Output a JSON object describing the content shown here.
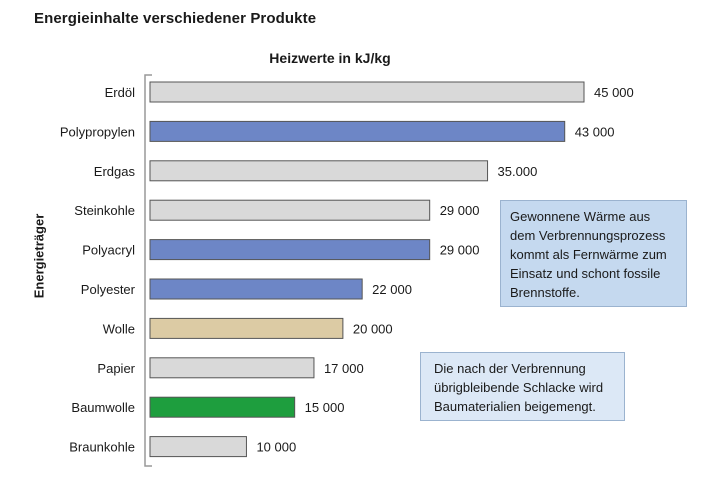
{
  "title": "Energieinhalte verschiedener Produkte",
  "notes": [
    [
      "Gewonnene Wärme aus",
      "dem Verbrennungsprozess",
      "kommt als Fernwärme zum",
      "Einsatz und schont fossile",
      "Brennstoffe."
    ],
    [
      "Die nach der Verbrennung",
      "übrigbleibende Schlacke wird",
      "Baumaterialien beigemengt."
    ]
  ],
  "colors": {
    "grey": "#d9d9d9",
    "blue": "#6d86c6",
    "beige": "#dccba4",
    "green": "#1e9e3e",
    "border": "#555555"
  },
  "chart_data": {
    "type": "bar",
    "orientation": "horizontal",
    "title": "Heizwerte in kJ/kg",
    "ylabel": "Energieträger",
    "categories": [
      "Erdöl",
      "Polypropylen",
      "Erdgas",
      "Steinkohle",
      "Polyacryl",
      "Polyester",
      "Wolle",
      "Papier",
      "Baumwolle",
      "Braunkohle"
    ],
    "values": [
      45000,
      43000,
      35000,
      29000,
      29000,
      22000,
      20000,
      17000,
      15000,
      10000
    ],
    "value_labels": [
      "45 000",
      "43 000",
      "35.000",
      "29 000",
      "29 000",
      "22 000",
      "20 000",
      "17 000",
      "15 000",
      "10 000"
    ],
    "bar_colors": [
      "grey",
      "blue",
      "grey",
      "grey",
      "blue",
      "blue",
      "beige",
      "grey",
      "green",
      "grey"
    ],
    "xlim": [
      0,
      45000
    ],
    "grid": false,
    "legend": "none"
  }
}
